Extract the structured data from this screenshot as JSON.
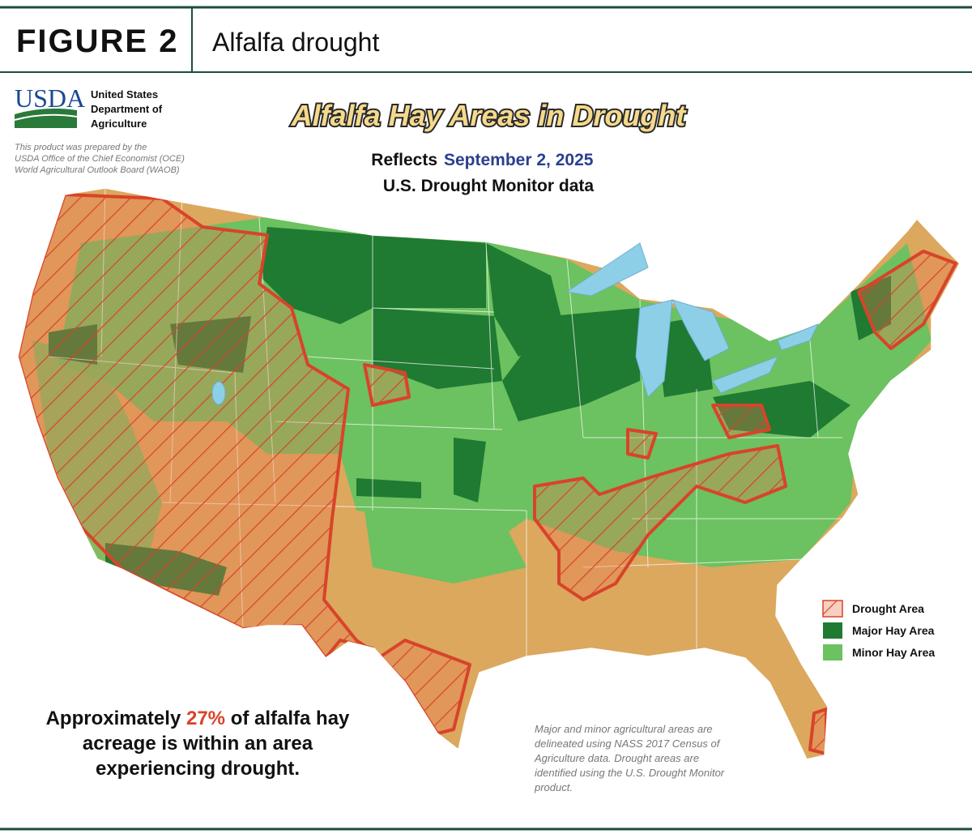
{
  "header": {
    "figure": "FIGURE 2",
    "title": "Alfalfa drought"
  },
  "logo": {
    "mark": "USDA",
    "agency": [
      "United States",
      "Department of",
      "Agriculture"
    ]
  },
  "credit": [
    "This product was prepared by the",
    "USDA Office of the Chief Economist (OCE)",
    "World Agricultural Outlook Board (WAOB)"
  ],
  "map": {
    "title": "Alfalfa Hay Areas in Drought",
    "subtitle": {
      "prefix": "Reflects",
      "date": "September 2, 2025",
      "line2": "U.S. Drought Monitor data"
    },
    "legend": [
      {
        "label": "Drought Area"
      },
      {
        "label": "Major Hay Area"
      },
      {
        "label": "Minor Hay Area"
      }
    ]
  },
  "summary": {
    "before": "Approximately",
    "share": "27%",
    "after": [
      "of alfalfa hay",
      "acreage is within an area",
      "experiencing drought."
    ]
  },
  "note": [
    "Major and minor agricultural areas are",
    "delineated using NASS 2017 Census of",
    "Agriculture data.  Drought areas are",
    "identified using the U.S. Drought Monitor",
    "product."
  ]
}
